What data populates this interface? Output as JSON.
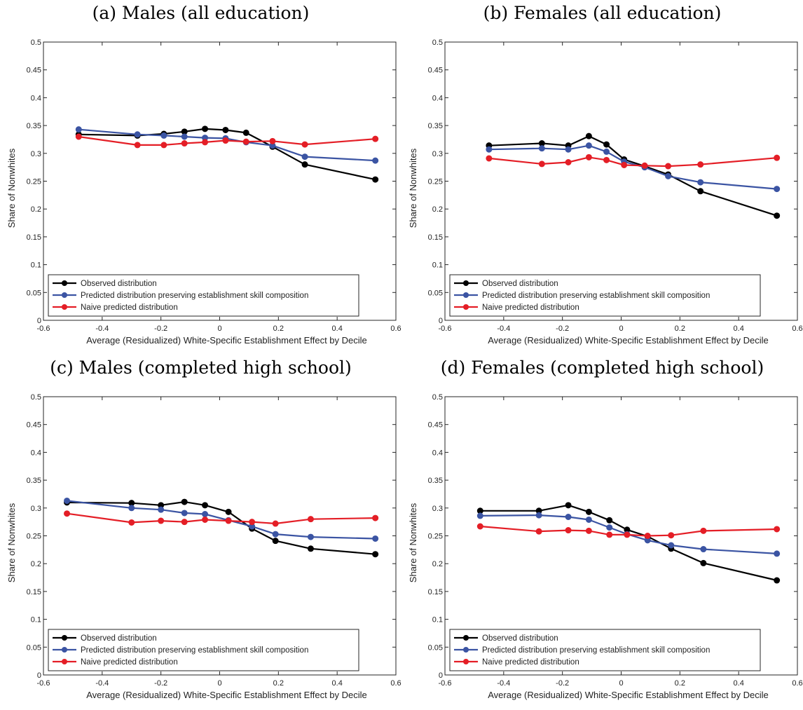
{
  "chart_data": [
    {
      "type": "line",
      "title": "(a) Males (all education)",
      "xlabel": "Average (Residualized) White-Specific Establishment Effect by Decile",
      "ylabel": "Share of Nonwhites",
      "xlim": [
        -0.6,
        0.6
      ],
      "ylim": [
        0,
        0.5
      ],
      "xticks": [
        -0.6,
        -0.4,
        -0.2,
        0,
        0.2,
        0.4,
        0.6
      ],
      "xtick_labels": [
        "-0.6",
        "-0.4",
        "-0.2",
        "0",
        "0.2",
        "0.4",
        "0.6"
      ],
      "yticks": [
        0,
        0.05,
        0.1,
        0.15,
        0.2,
        0.25,
        0.3,
        0.35,
        0.4,
        0.45,
        0.5
      ],
      "ytick_labels": [
        "0",
        "0.05",
        "0.1",
        "0.15",
        "0.2",
        "0.25",
        "0.3",
        "0.35",
        "0.4",
        "0.45",
        "0.5"
      ],
      "grid": false,
      "legend_position": "bottom-left",
      "series": [
        {
          "name": "Observed distribution",
          "color": "#000000",
          "x": [
            -0.48,
            -0.28,
            -0.19,
            -0.12,
            -0.05,
            0.02,
            0.09,
            0.18,
            0.29,
            0.53
          ],
          "y": [
            0.334,
            0.332,
            0.335,
            0.339,
            0.344,
            0.342,
            0.337,
            0.312,
            0.28,
            0.253
          ]
        },
        {
          "name": "Predicted distribution preserving establishment skill composition",
          "color": "#3b54a3",
          "x": [
            -0.48,
            -0.28,
            -0.19,
            -0.12,
            -0.05,
            0.02,
            0.09,
            0.18,
            0.29,
            0.53
          ],
          "y": [
            0.343,
            0.334,
            0.332,
            0.33,
            0.328,
            0.327,
            0.32,
            0.314,
            0.294,
            0.287
          ]
        },
        {
          "name": "Naive predicted distribution",
          "color": "#e41e26",
          "x": [
            -0.48,
            -0.28,
            -0.19,
            -0.12,
            -0.05,
            0.02,
            0.09,
            0.18,
            0.29,
            0.53
          ],
          "y": [
            0.33,
            0.315,
            0.315,
            0.318,
            0.32,
            0.323,
            0.321,
            0.322,
            0.316,
            0.326
          ]
        }
      ]
    },
    {
      "type": "line",
      "title": "(b) Females (all education)",
      "xlabel": "Average (Residualized) White-Specific Establishment Effect by Decile",
      "ylabel": "Share of Nonwhites",
      "xlim": [
        -0.6,
        0.6
      ],
      "ylim": [
        0,
        0.5
      ],
      "xticks": [
        -0.6,
        -0.4,
        -0.2,
        0,
        0.2,
        0.4,
        0.6
      ],
      "xtick_labels": [
        "-0.6",
        "-0.4",
        "-0.2",
        "0",
        "0.2",
        "0.4",
        "0.6"
      ],
      "yticks": [
        0,
        0.05,
        0.1,
        0.15,
        0.2,
        0.25,
        0.3,
        0.35,
        0.4,
        0.45,
        0.5
      ],
      "ytick_labels": [
        "0",
        "0.05",
        "0.1",
        "0.15",
        "0.2",
        "0.25",
        "0.3",
        "0.35",
        "0.4",
        "0.45",
        "0.5"
      ],
      "grid": false,
      "legend_position": "bottom-left",
      "series": [
        {
          "name": "Observed distribution",
          "color": "#000000",
          "x": [
            -0.45,
            -0.27,
            -0.18,
            -0.11,
            -0.05,
            0.01,
            0.08,
            0.16,
            0.27,
            0.53
          ],
          "y": [
            0.314,
            0.318,
            0.314,
            0.331,
            0.316,
            0.289,
            0.277,
            0.262,
            0.232,
            0.188
          ]
        },
        {
          "name": "Predicted distribution preserving establishment skill composition",
          "color": "#3b54a3",
          "x": [
            -0.45,
            -0.27,
            -0.18,
            -0.11,
            -0.05,
            0.01,
            0.08,
            0.16,
            0.27,
            0.53
          ],
          "y": [
            0.307,
            0.309,
            0.307,
            0.314,
            0.303,
            0.285,
            0.275,
            0.259,
            0.248,
            0.236
          ]
        },
        {
          "name": "Naive predicted distribution",
          "color": "#e41e26",
          "x": [
            -0.45,
            -0.27,
            -0.18,
            -0.11,
            -0.05,
            0.01,
            0.08,
            0.16,
            0.27,
            0.53
          ],
          "y": [
            0.291,
            0.281,
            0.284,
            0.293,
            0.288,
            0.279,
            0.278,
            0.277,
            0.28,
            0.292
          ]
        }
      ]
    },
    {
      "type": "line",
      "title": "(c) Males (completed high school)",
      "xlabel": "Average (Residualized) White-Specific Establishment Effect by Decile",
      "ylabel": "Share of Nonwhites",
      "xlim": [
        -0.6,
        0.6
      ],
      "ylim": [
        0,
        0.5
      ],
      "xticks": [
        -0.6,
        -0.4,
        -0.2,
        0,
        0.2,
        0.4,
        0.6
      ],
      "xtick_labels": [
        "-0.6",
        "-0.4",
        "-0.2",
        "0",
        "0.2",
        "0.4",
        "0.6"
      ],
      "yticks": [
        0,
        0.05,
        0.1,
        0.15,
        0.2,
        0.25,
        0.3,
        0.35,
        0.4,
        0.45,
        0.5
      ],
      "ytick_labels": [
        "0",
        "0.05",
        "0.1",
        "0.15",
        "0.2",
        "0.25",
        "0.3",
        "0.35",
        "0.4",
        "0.45",
        "0.5"
      ],
      "grid": false,
      "legend_position": "bottom-left",
      "series": [
        {
          "name": "Observed distribution",
          "color": "#000000",
          "x": [
            -0.52,
            -0.3,
            -0.2,
            -0.12,
            -0.05,
            0.03,
            0.11,
            0.19,
            0.31,
            0.53
          ],
          "y": [
            0.31,
            0.309,
            0.305,
            0.311,
            0.305,
            0.293,
            0.263,
            0.241,
            0.227,
            0.217
          ]
        },
        {
          "name": "Predicted distribution preserving establishment skill composition",
          "color": "#3b54a3",
          "x": [
            -0.52,
            -0.3,
            -0.2,
            -0.12,
            -0.05,
            0.03,
            0.11,
            0.19,
            0.31,
            0.53
          ],
          "y": [
            0.313,
            0.3,
            0.297,
            0.291,
            0.289,
            0.278,
            0.267,
            0.253,
            0.248,
            0.245
          ]
        },
        {
          "name": "Naive predicted distribution",
          "color": "#e41e26",
          "x": [
            -0.52,
            -0.3,
            -0.2,
            -0.12,
            -0.05,
            0.03,
            0.11,
            0.19,
            0.31,
            0.53
          ],
          "y": [
            0.29,
            0.274,
            0.277,
            0.275,
            0.279,
            0.277,
            0.275,
            0.272,
            0.28,
            0.282
          ]
        }
      ]
    },
    {
      "type": "line",
      "title": "(d) Females (completed high school)",
      "xlabel": "Average (Residualized) White-Specific Establishment Effect by Decile",
      "ylabel": "Share of Nonwhites",
      "xlim": [
        -0.6,
        0.6
      ],
      "ylim": [
        0,
        0.5
      ],
      "xticks": [
        -0.6,
        -0.4,
        -0.2,
        0,
        0.2,
        0.4,
        0.6
      ],
      "xtick_labels": [
        "-0.6",
        "-0.4",
        "-0.2",
        "0",
        "0.2",
        "0.4",
        "0.6"
      ],
      "yticks": [
        0,
        0.05,
        0.1,
        0.15,
        0.2,
        0.25,
        0.3,
        0.35,
        0.4,
        0.45,
        0.5
      ],
      "ytick_labels": [
        "0",
        "0.05",
        "0.1",
        "0.15",
        "0.2",
        "0.25",
        "0.3",
        "0.35",
        "0.4",
        "0.45",
        "0.5"
      ],
      "grid": false,
      "legend_position": "bottom-left",
      "series": [
        {
          "name": "Observed distribution",
          "color": "#000000",
          "x": [
            -0.48,
            -0.28,
            -0.18,
            -0.11,
            -0.04,
            0.02,
            0.09,
            0.17,
            0.28,
            0.53
          ],
          "y": [
            0.295,
            0.295,
            0.305,
            0.293,
            0.278,
            0.261,
            0.249,
            0.227,
            0.201,
            0.17
          ]
        },
        {
          "name": "Predicted distribution preserving establishment skill composition",
          "color": "#3b54a3",
          "x": [
            -0.48,
            -0.28,
            -0.18,
            -0.11,
            -0.04,
            0.02,
            0.09,
            0.17,
            0.28,
            0.53
          ],
          "y": [
            0.286,
            0.287,
            0.284,
            0.279,
            0.265,
            0.253,
            0.242,
            0.233,
            0.226,
            0.218
          ]
        },
        {
          "name": "Naive predicted distribution",
          "color": "#e41e26",
          "x": [
            -0.48,
            -0.28,
            -0.18,
            -0.11,
            -0.04,
            0.02,
            0.09,
            0.17,
            0.28,
            0.53
          ],
          "y": [
            0.267,
            0.258,
            0.26,
            0.259,
            0.252,
            0.252,
            0.25,
            0.251,
            0.259,
            0.262
          ]
        }
      ]
    }
  ]
}
